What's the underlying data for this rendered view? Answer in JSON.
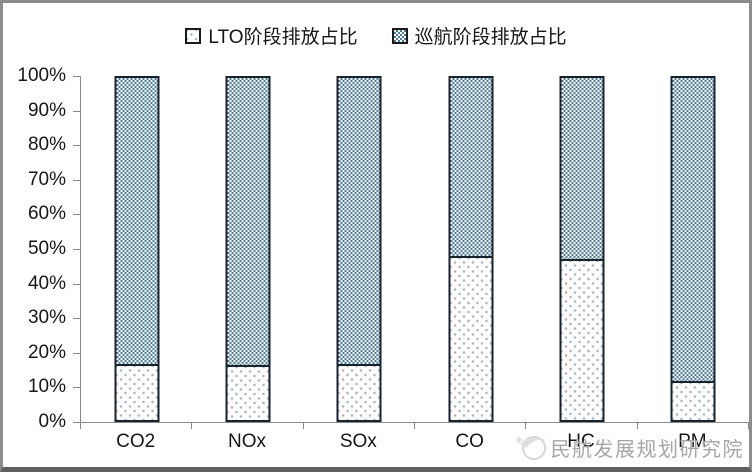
{
  "legend": {
    "items": [
      {
        "label": "LTO阶段排放占比",
        "swatch": "lto"
      },
      {
        "label": "巡航阶段排放占比",
        "swatch": "cruise"
      }
    ]
  },
  "watermark": {
    "text": "民航发展规划研究院"
  },
  "chart_data": {
    "type": "bar",
    "stacked": true,
    "units": "percent",
    "title": "",
    "xlabel": "",
    "ylabel": "",
    "categories": [
      "CO2",
      "NOx",
      "SOx",
      "CO",
      "HC",
      "PM"
    ],
    "series": [
      {
        "name": "LTO阶段排放占比",
        "values": [
          16.5,
          16,
          16.5,
          48,
          47,
          11.5
        ]
      },
      {
        "name": "巡航阶段排放占比",
        "values": [
          83.5,
          84,
          83.5,
          52,
          53,
          88.5
        ]
      }
    ],
    "ylim": [
      0,
      100
    ],
    "y_ticks": [
      "0%",
      "10%",
      "20%",
      "30%",
      "40%",
      "50%",
      "60%",
      "70%",
      "80%",
      "90%",
      "100%"
    ],
    "grid": false,
    "legend_position": "top"
  },
  "colors": {
    "cruise_fill": "#4a7a96",
    "lto_dot": "#a9b6be",
    "bar_border": "#16222e",
    "axis_line": "#8a8a8a",
    "label_text": "#161616",
    "watermark_text": "#a6a6a6",
    "frame_border": "#8c8c8c"
  }
}
